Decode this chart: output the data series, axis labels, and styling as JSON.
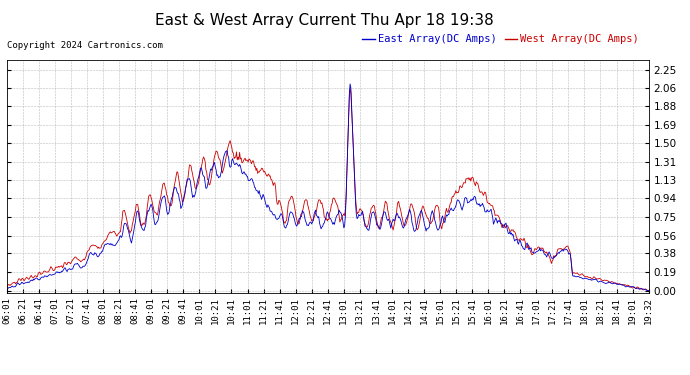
{
  "title": "East & West Array Current Thu Apr 18 19:38",
  "copyright": "Copyright 2024 Cartronics.com",
  "legend_east": "East Array(DC Amps)",
  "legend_west": "West Array(DC Amps)",
  "east_color": "#0000cc",
  "west_color": "#cc0000",
  "yticks": [
    0.0,
    0.19,
    0.38,
    0.56,
    0.75,
    0.94,
    1.13,
    1.31,
    1.5,
    1.69,
    1.88,
    2.06,
    2.25
  ],
  "ylim": [
    -0.02,
    2.35
  ],
  "xlabel_fontsize": 6.5,
  "ylabel_fontsize": 7.5,
  "title_fontsize": 11,
  "bg_color": "#ffffff",
  "grid_color": "#aaaaaa",
  "xtick_labels": [
    "06:01",
    "06:21",
    "06:41",
    "07:01",
    "07:21",
    "07:41",
    "08:01",
    "08:21",
    "08:41",
    "09:01",
    "09:21",
    "09:41",
    "10:01",
    "10:21",
    "10:41",
    "11:01",
    "11:21",
    "11:41",
    "12:01",
    "12:21",
    "12:41",
    "13:01",
    "13:21",
    "13:41",
    "14:01",
    "14:21",
    "14:41",
    "15:01",
    "15:21",
    "15:41",
    "16:01",
    "16:21",
    "16:41",
    "17:01",
    "17:21",
    "17:41",
    "18:01",
    "18:21",
    "18:41",
    "19:01",
    "19:32"
  ]
}
